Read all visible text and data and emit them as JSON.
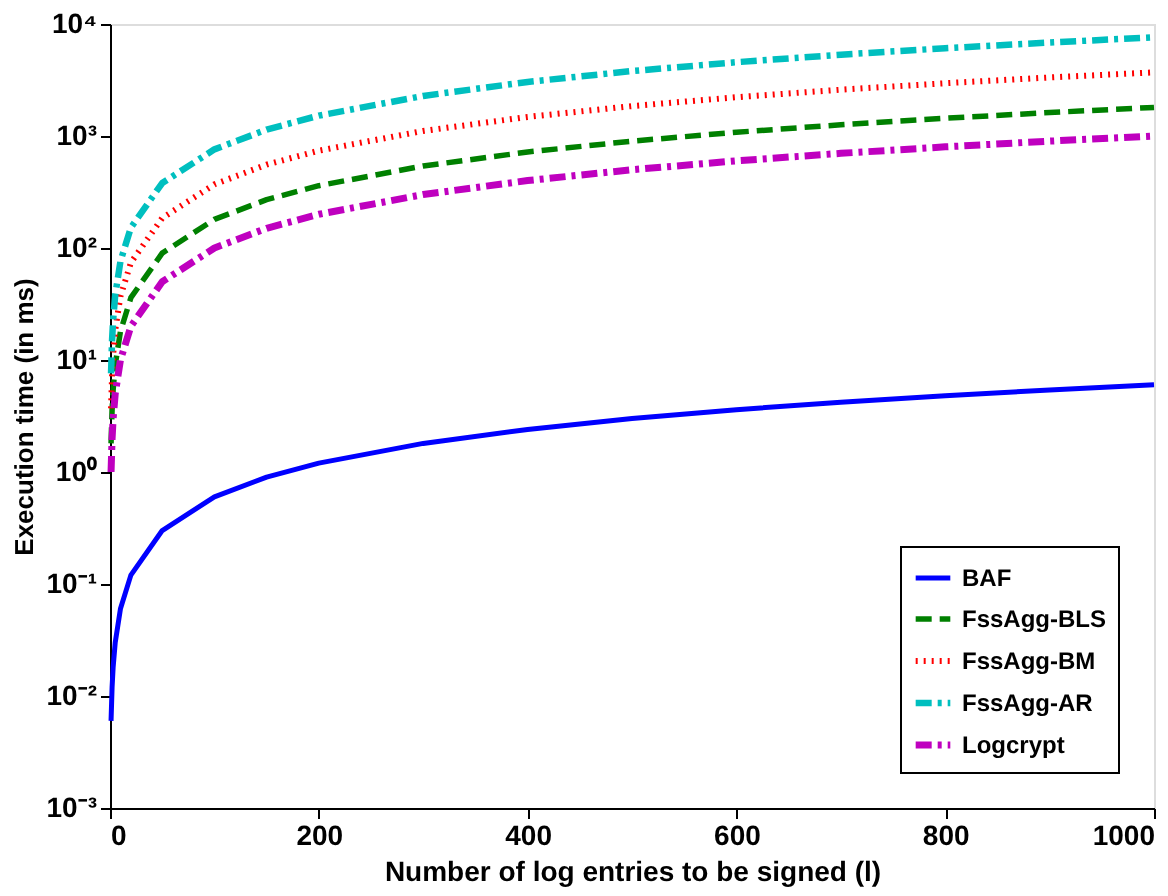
{
  "chart_data": {
    "type": "line",
    "xlabel": "Number of log entries to be signed (l)",
    "ylabel": "Execution time (in ms)",
    "x": [
      1,
      2,
      3,
      5,
      10,
      20,
      50,
      100,
      150,
      200,
      300,
      400,
      500,
      600,
      700,
      800,
      900,
      1000
    ],
    "series": [
      {
        "name": "BAF",
        "color": "#0000ff",
        "line_style": "solid",
        "values": [
          0.006,
          0.012,
          0.018,
          0.03,
          0.06,
          0.12,
          0.3,
          0.6,
          0.9,
          1.2,
          1.8,
          2.4,
          3,
          3.6,
          4.2,
          4.8,
          5.4,
          6
        ]
      },
      {
        "name": "FssAgg-BLS",
        "color": "#008000",
        "line_style": "dashed",
        "values": [
          1.8,
          3.6,
          5.4,
          9,
          18,
          36,
          90,
          180,
          270,
          360,
          540,
          720,
          900,
          1080,
          1260,
          1440,
          1620,
          1800
        ]
      },
      {
        "name": "FssAgg-BM",
        "color": "#ff0000",
        "line_style": "dotted",
        "values": [
          3.7,
          7.4,
          11.1,
          18.5,
          37,
          74,
          185,
          370,
          555,
          740,
          1110,
          1480,
          1850,
          2220,
          2590,
          2960,
          3330,
          3700
        ]
      },
      {
        "name": "FssAgg-AR",
        "color": "#00bfbf",
        "line_style": "dashdot",
        "values": [
          7.6,
          15.2,
          22.8,
          38,
          76,
          152,
          380,
          760,
          1140,
          1520,
          2280,
          3040,
          3800,
          4560,
          5320,
          6080,
          6840,
          7600
        ]
      },
      {
        "name": "Logcrypt",
        "color": "#bf00bf",
        "line_style": "dashdot",
        "values": [
          1,
          2,
          3,
          5,
          10,
          20,
          50,
          100,
          150,
          200,
          300,
          400,
          500,
          600,
          700,
          800,
          900,
          1000
        ]
      }
    ],
    "log": "y",
    "xlim": [
      0,
      1000
    ],
    "xticks": [
      0,
      200,
      400,
      600,
      800,
      1000
    ],
    "ylim": [
      0.001,
      10000
    ],
    "yticks": [
      {
        "value": 0.001,
        "label": "10⁻³"
      },
      {
        "value": 0.01,
        "label": "10⁻²"
      },
      {
        "value": 0.1,
        "label": "10⁻¹"
      },
      {
        "value": 1,
        "label": "10⁰"
      },
      {
        "value": 10,
        "label": "10¹"
      },
      {
        "value": 100,
        "label": "10²"
      },
      {
        "value": 1000,
        "label": "10³"
      },
      {
        "value": 10000,
        "label": "10⁴"
      }
    ],
    "grid": false,
    "legend": "bottom right",
    "marker": "none"
  }
}
